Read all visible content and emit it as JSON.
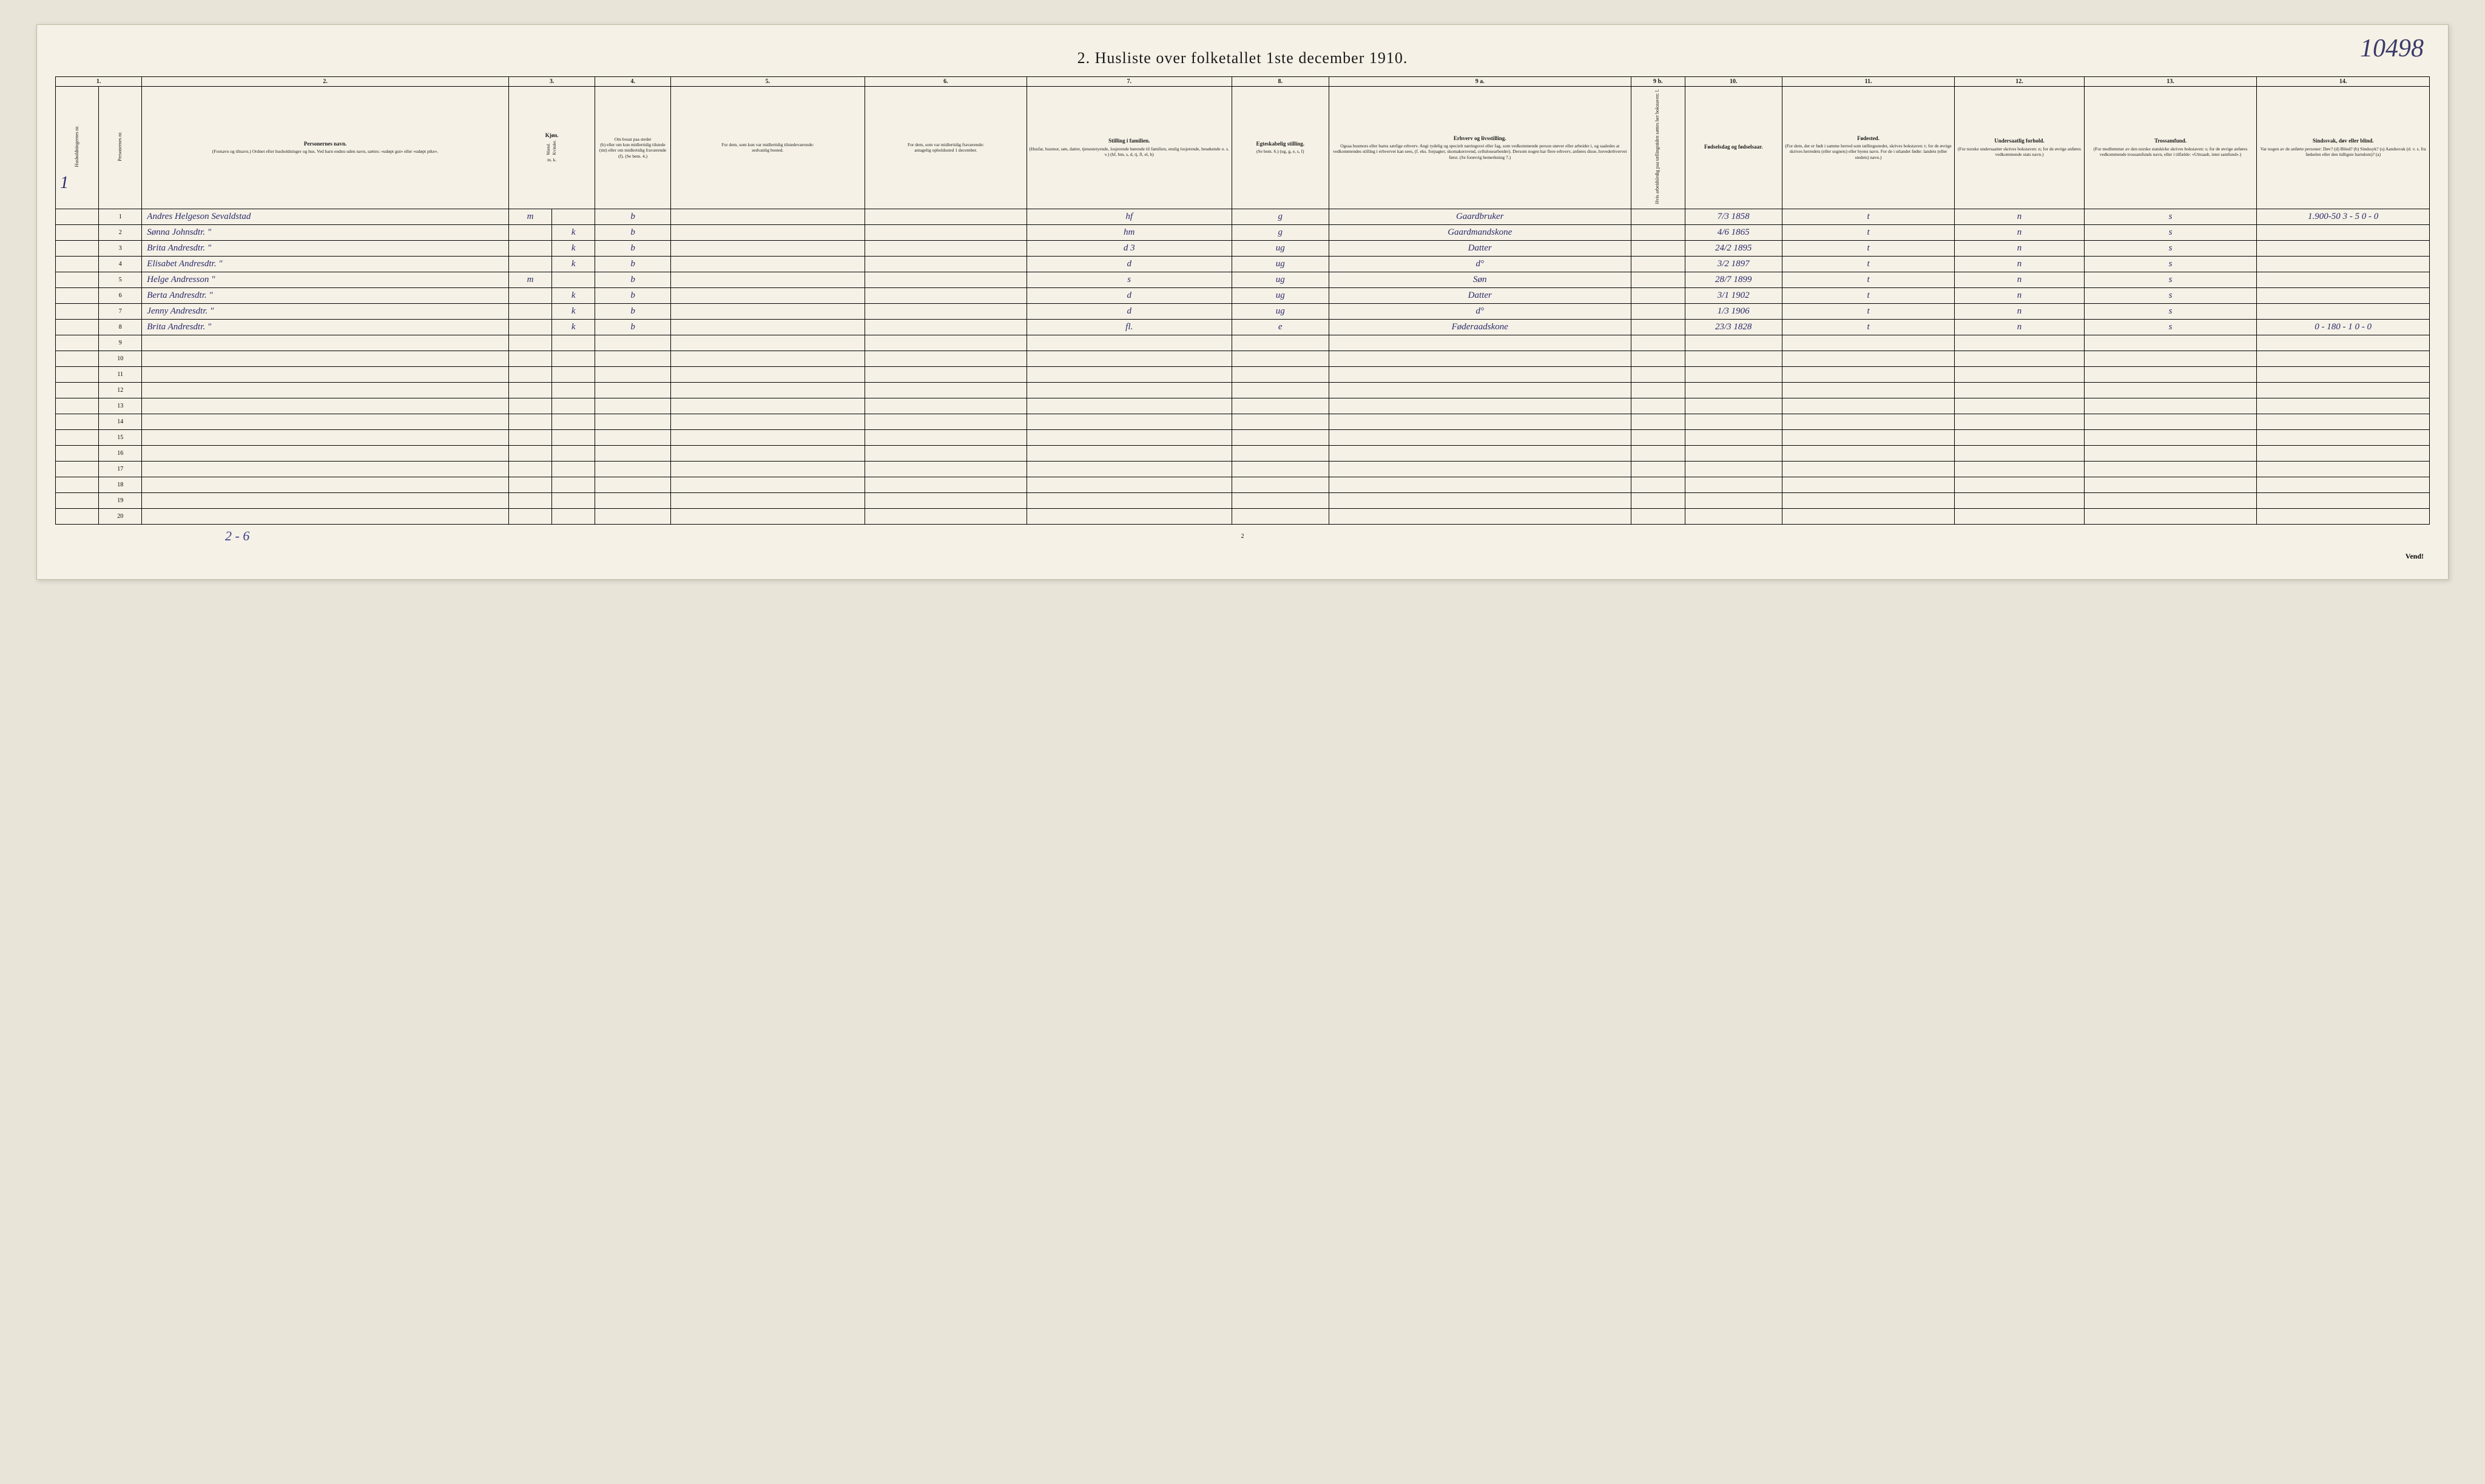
{
  "corner_annotation": "10498",
  "title": "2.  Husliste over folketallet 1ste december 1910.",
  "left_margin_marker": "1",
  "column_numbers": [
    "1.",
    "2.",
    "3.",
    "4.",
    "5.",
    "6.",
    "7.",
    "8.",
    "9 a.",
    "9 b.",
    "10.",
    "11.",
    "12.",
    "13.",
    "14."
  ],
  "col_widths_pct": [
    2.0,
    2.0,
    17.0,
    2.0,
    2.0,
    3.5,
    9.0,
    7.5,
    9.5,
    4.5,
    14.0,
    2.5,
    4.5,
    8.0,
    6.0,
    8.0,
    8.0
  ],
  "headers": {
    "c1a": "Husholdningernes nr.",
    "c1b": "Personernes nr.",
    "c2_title": "Personernes navn.",
    "c2_sub": "(Fornavn og tilnavn.)\nOrdnet efter husholdninger og hus.\nVed barn endnu uden navn, sættes: «udøpt gut» eller «udøpt pike».",
    "c3_title": "Kjøn.",
    "c3_m": "Mænd.",
    "c3_k": "Kvinder.",
    "c3_foot": "m.  k.",
    "c4_title": "Om bosat paa stedet",
    "c4_sub": "(b) eller om kun midlertidig tilstede (mt) eller om midlertidig fraværende (f). (Se bem. 4.)",
    "c5_title": "For dem, som kun var midlertidig tilstedeværende:",
    "c5_sub": "sedvanlig bosted.",
    "c6_title": "For dem, som var midlertidig fraværende:",
    "c6_sub": "antagelig opholdssted 1 december.",
    "c7_title": "Stilling i familien.",
    "c7_sub": "(Husfar, husmor, søn, datter, tjenestetyende, losjerende hørende til familien, enslig losjerende, besøkende o. s. v.)\n(hf, hm, s, d, tj, fl, el, b)",
    "c8_title": "Egteskabelig stilling.",
    "c8_sub": "(Se bem. 6.)\n(ug, g, e, s, f)",
    "c9a_title": "Erhverv og livsstilling.",
    "c9a_sub": "Ogsaa husmors eller barns særlige erhverv. Angi tydelig og specielt næringsvei eller fag, som vedkommende person utøver eller arbeider i, og saaledes at vedkommendes stilling i erhvervet kan sees, (f. eks. forpagter, skomakersvend, cellulosearbeider). Dersom nogen har flere erhverv, anføres disse, hovederhvervet først.\n(Se forøvrig bemerkning 7.)",
    "c9b": "Hvis arbeidsledig paa tællingstiden sættes her bokstaven: l.",
    "c10_title": "Fødselsdag og fødselsaar.",
    "c11_title": "Fødested.",
    "c11_sub": "(For dem, der er født i samme herred som tællingsstedet, skrives bokstaven: t; for de øvrige skrives herredets (eller sognets) eller byens navn. For de i utlandet fødte: landets (eller stedets) navn.)",
    "c12_title": "Undersaatlig forhold.",
    "c12_sub": "(For norske undersaatter skrives bokstaven: n; for de øvrige anføres vedkommende stats navn.)",
    "c13_title": "Trossamfund.",
    "c13_sub": "(For medlemmer av den norske statskirke skrives bokstaven: s; for de øvrige anføres vedkommende trossamfunds navn, eller i tilfælde: «Uttraadt, intet samfund».)",
    "c14_title": "Sindssvak, døv eller blind.",
    "c14_sub": "Var nogen av de anførte personer:\nDøv?     (d)\nBlind?   (b)\nSindssyk? (s)\nAandssvak (d. v. s. fra fødselen eller den tidligste barndom)? (a)"
  },
  "side_annotation_top": "1.900-50 3 - 5\n0 - 0",
  "side_annotation_r8": "0 - 180 - 1\n0 - 0",
  "rows": [
    {
      "n": "1",
      "name": "Andres Helgeson Sevaldstad",
      "m": "m",
      "k": "",
      "b": "b",
      "c5": "",
      "c6": "",
      "fam": "hf",
      "egt": "g",
      "erhv": "Gaardbruker",
      "dob": "7/3 1858",
      "fst": "t",
      "und": "n",
      "tro": "s",
      "c14": ""
    },
    {
      "n": "2",
      "name": "Sønna Johnsdtr.      \"",
      "m": "",
      "k": "k",
      "b": "b",
      "c5": "",
      "c6": "",
      "fam": "hm",
      "egt": "g",
      "erhv": "Gaardmandskone",
      "dob": "4/6 1865",
      "fst": "t",
      "und": "n",
      "tro": "s",
      "c14": ""
    },
    {
      "n": "3",
      "name": "Brita Andresdtr.     \"",
      "m": "",
      "k": "k",
      "b": "b",
      "c5": "",
      "c6": "",
      "fam": "d    3",
      "egt": "ug",
      "erhv": "Datter",
      "dob": "24/2 1895",
      "fst": "t",
      "und": "n",
      "tro": "s",
      "c14": ""
    },
    {
      "n": "4",
      "name": "Elisabet Andresdtr.  \"",
      "m": "",
      "k": "k",
      "b": "b",
      "c5": "",
      "c6": "",
      "fam": "d",
      "egt": "ug",
      "erhv": "d°",
      "dob": "3/2 1897",
      "fst": "t",
      "und": "n",
      "tro": "s",
      "c14": ""
    },
    {
      "n": "5",
      "name": "Helge Andresson     \"",
      "m": "m",
      "k": "",
      "b": "b",
      "c5": "",
      "c6": "",
      "fam": "s",
      "egt": "ug",
      "erhv": "Søn",
      "dob": "28/7 1899",
      "fst": "t",
      "und": "n",
      "tro": "s",
      "c14": ""
    },
    {
      "n": "6",
      "name": "Berta Andresdtr.    \"",
      "m": "",
      "k": "k",
      "b": "b",
      "c5": "",
      "c6": "",
      "fam": "d",
      "egt": "ug",
      "erhv": "Datter",
      "dob": "3/1 1902",
      "fst": "t",
      "und": "n",
      "tro": "s",
      "c14": ""
    },
    {
      "n": "7",
      "name": "Jenny Andresdtr.    \"",
      "m": "",
      "k": "k",
      "b": "b",
      "c5": "",
      "c6": "",
      "fam": "d",
      "egt": "ug",
      "erhv": "d°",
      "dob": "1/3 1906",
      "fst": "t",
      "und": "n",
      "tro": "s",
      "c14": ""
    },
    {
      "n": "8",
      "name": "Brita Andresdtr.    \"",
      "m": "",
      "k": "k",
      "b": "b",
      "c5": "",
      "c6": "",
      "fam": "fl.",
      "egt": "e",
      "erhv": "Føderaadskone",
      "dob": "23/3 1828",
      "fst": "t",
      "und": "n",
      "tro": "s",
      "c14": ""
    }
  ],
  "empty_row_numbers": [
    "9",
    "10",
    "11",
    "12",
    "13",
    "14",
    "15",
    "16",
    "17",
    "18",
    "19",
    "20"
  ],
  "footer_tally": "2 - 6",
  "footer_page": "2",
  "vend": "Vend!",
  "colors": {
    "page_bg": "#f5f1e6",
    "body_bg": "#e8e4d8",
    "ink": "#1a1a1a",
    "handwriting": "#2a2a6a",
    "border": "#000000"
  }
}
